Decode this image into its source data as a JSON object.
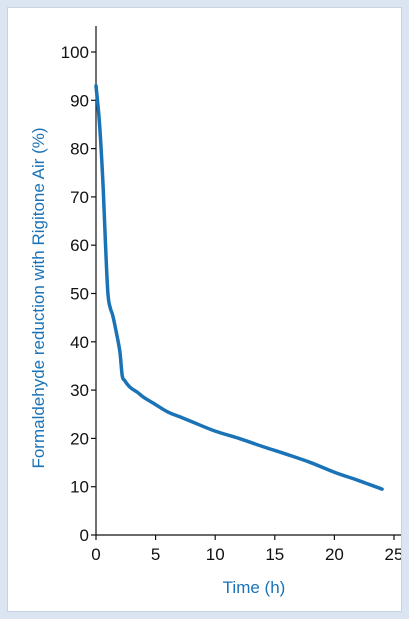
{
  "chart_data": {
    "type": "line",
    "xlabel": "Time (h)",
    "ylabel": "Formaldehyde reduction with Rigitone Air (%)",
    "xlim": [
      0,
      25
    ],
    "ylim": [
      0,
      100
    ],
    "x_ticks": [
      0,
      5,
      10,
      15,
      20,
      25
    ],
    "y_ticks": [
      0,
      10,
      20,
      30,
      40,
      50,
      60,
      70,
      80,
      90,
      100
    ],
    "grid": false,
    "series": [
      {
        "x": [
          0.0,
          0.3,
          0.6,
          0.8,
          1.0,
          1.2,
          1.4,
          1.7,
          2.0,
          2.2,
          2.4,
          2.7,
          3.0,
          3.5,
          4.0,
          5.0,
          6.0,
          7.0,
          8.0,
          10.0,
          12.0,
          14.0,
          16.0,
          18.0,
          20.0,
          22.0,
          24.0
        ],
        "y": [
          93.0,
          85.0,
          72.0,
          60.0,
          50.0,
          47.0,
          45.5,
          42.0,
          38.0,
          33.0,
          32.0,
          31.0,
          30.3,
          29.5,
          28.5,
          27.0,
          25.5,
          24.5,
          23.5,
          21.5,
          20.0,
          18.3,
          16.7,
          15.0,
          13.0,
          11.3,
          9.5
        ]
      }
    ],
    "colors": {
      "series": "#1a73b6",
      "axis_label": "#1a73b6",
      "axis": "#111111"
    }
  }
}
